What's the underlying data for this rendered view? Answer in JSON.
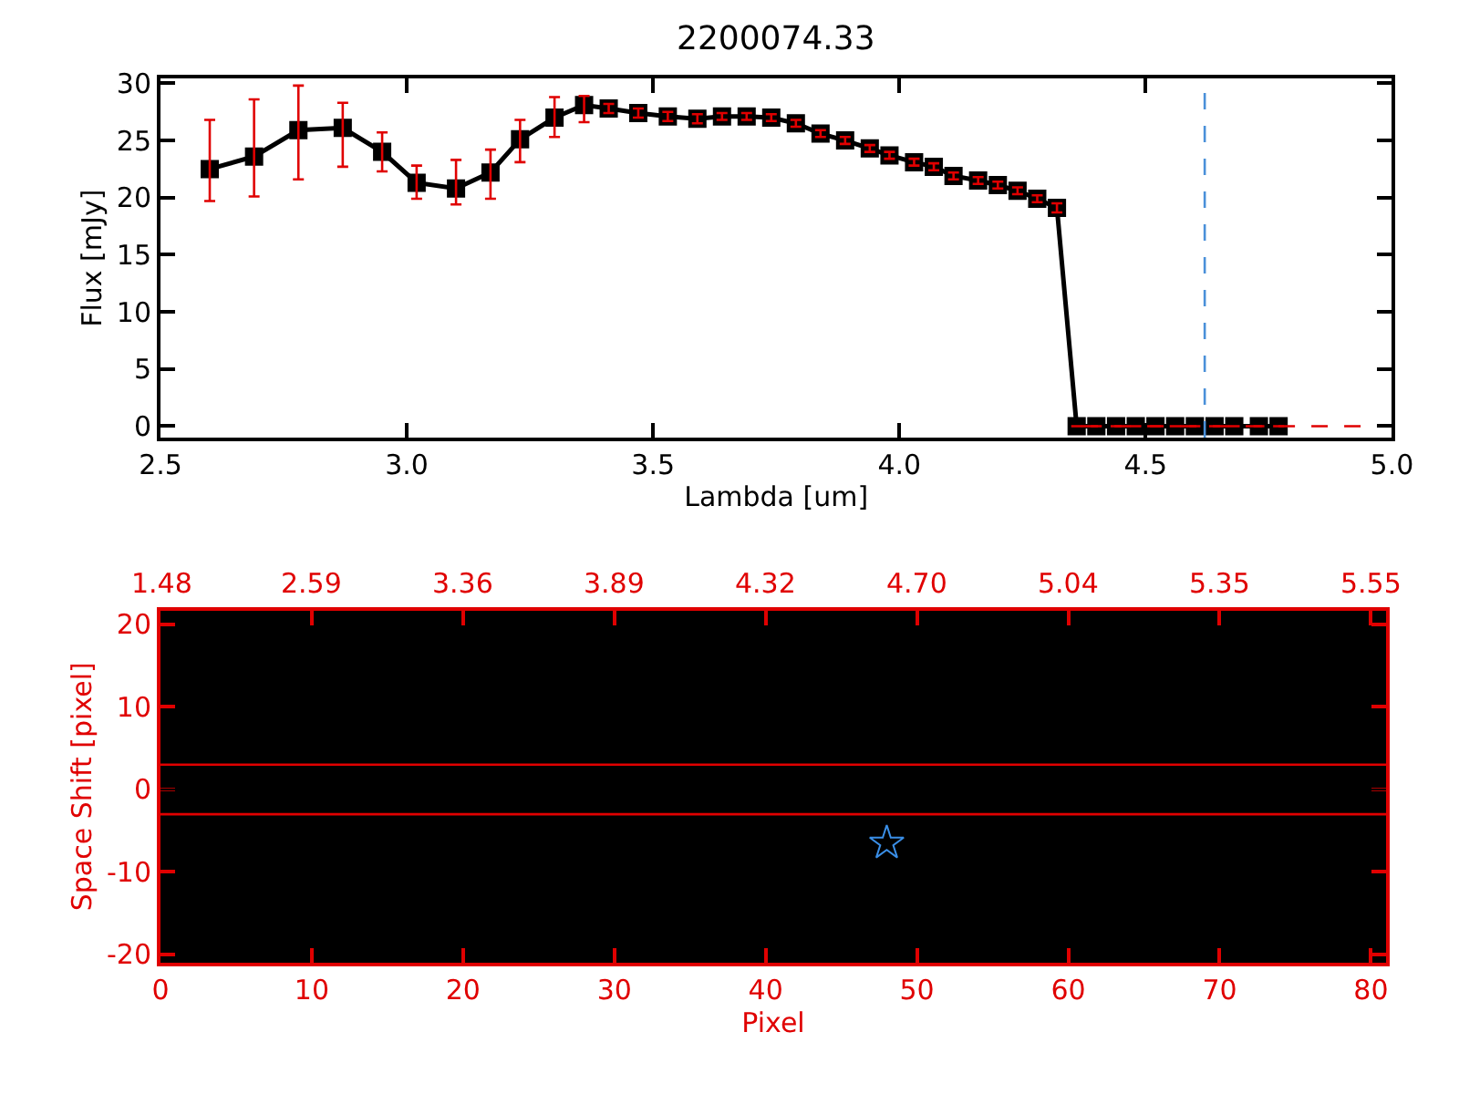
{
  "chart_data": [
    {
      "type": "line",
      "title": "2200074.33",
      "xlabel": "Lambda [um]",
      "ylabel": "Flux [mJy]",
      "marker": "square",
      "line_style": "solid",
      "grid": false,
      "x": [
        2.6,
        2.69,
        2.78,
        2.87,
        2.95,
        3.02,
        3.1,
        3.17,
        3.23,
        3.3,
        3.36,
        3.41,
        3.47,
        3.53,
        3.59,
        3.64,
        3.69,
        3.74,
        3.79,
        3.84,
        3.89,
        3.94,
        3.98,
        4.03,
        4.07,
        4.11,
        4.16,
        4.2,
        4.24,
        4.28,
        4.32,
        4.36,
        4.4,
        4.44,
        4.48,
        4.52,
        4.56,
        4.6,
        4.64,
        4.68,
        4.73,
        4.77
      ],
      "series": [
        {
          "color": "#000000",
          "values": [
            22.5,
            23.6,
            25.9,
            26.1,
            24.0,
            21.3,
            20.8,
            22.2,
            25.1,
            27.0,
            28.1,
            27.8,
            27.4,
            27.1,
            26.9,
            27.1,
            27.1,
            27.0,
            26.5,
            25.6,
            25.0,
            24.3,
            23.7,
            23.1,
            22.7,
            21.9,
            21.5,
            21.1,
            20.6,
            19.9,
            19.1,
            0,
            0,
            0,
            0,
            0,
            0,
            0,
            0,
            0,
            0,
            0
          ],
          "errors": [
            [
              19.7,
              26.8
            ],
            [
              20.1,
              28.6
            ],
            [
              21.6,
              29.8
            ],
            [
              22.7,
              28.3
            ],
            [
              22.3,
              25.7
            ],
            [
              19.9,
              22.8
            ],
            [
              19.4,
              23.3
            ],
            [
              19.9,
              24.2
            ],
            [
              23.1,
              26.8
            ],
            [
              25.3,
              28.8
            ],
            [
              26.6,
              28.9
            ],
            0.4,
            0.4,
            0.4,
            0.4,
            0.3,
            0.3,
            0.3,
            0.3,
            0.3,
            0.3,
            0.3,
            0.3,
            0.3,
            0.3,
            0.3,
            0.3,
            0.3,
            0.3,
            0.3,
            0.4,
            null,
            null,
            null,
            null,
            null,
            null,
            null,
            null,
            null,
            null,
            null
          ]
        },
        {
          "color": "#e00000",
          "type": "line",
          "marker": "none",
          "line_style": "dashed",
          "x": [
            4.37,
            5.0
          ],
          "values": [
            0,
            0
          ]
        }
      ],
      "xlim": [
        2.5,
        5.0
      ],
      "xticks": [
        2.5,
        {
          "value": 3.0,
          "label": "3.0"
        },
        3.5,
        {
          "value": 4.0,
          "label": "4.0"
        },
        4.5,
        {
          "value": 5.0,
          "label": "5.0"
        }
      ],
      "ylim": [
        -1,
        30.4
      ],
      "yticks": [
        0,
        5,
        10,
        15,
        20,
        25,
        30
      ],
      "ref_lines": [
        {
          "axis": "x",
          "value": 4.62,
          "color": "#4a90d9",
          "line_style": "dashed"
        }
      ]
    },
    {
      "type": "scatter",
      "xlabel": "Pixel",
      "ylabel": "Space Shift [pixel]",
      "marker": "star",
      "grid": false,
      "series": [
        {
          "color": "#3a8ee6",
          "x": [
            48
          ],
          "values": [
            -6.5
          ]
        }
      ],
      "xlim": [
        0,
        81
      ],
      "xticks": [
        0,
        10,
        20,
        30,
        40,
        50,
        60,
        70,
        80
      ],
      "annotations": [
        "1.48",
        "2.59",
        "3.36",
        "3.89",
        "4.32",
        "4.70",
        "5.04",
        "5.35",
        "5.55"
      ],
      "ylim": [
        -21,
        21.7
      ],
      "yticks": [
        -20,
        -10,
        0,
        10,
        20
      ],
      "ref_lines": [
        {
          "axis": "y",
          "value": 3,
          "color": "#e00000",
          "line_style": "solid"
        },
        {
          "axis": "y",
          "value": -3,
          "color": "#e00000",
          "line_style": "solid"
        },
        {
          "axis": "y",
          "value": 0,
          "color": "#000000",
          "line_style": "solid"
        }
      ]
    }
  ]
}
